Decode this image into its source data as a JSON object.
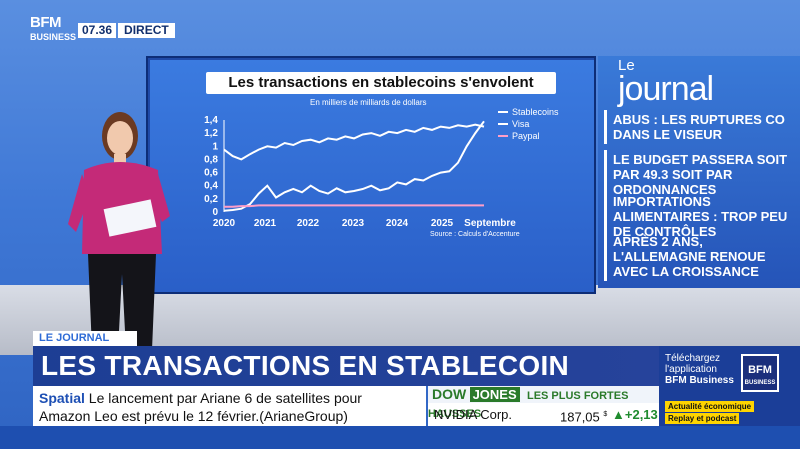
{
  "channel": {
    "logo_main": "BFM",
    "logo_sub": "BUSINESS",
    "time": "07.36",
    "live": "DIRECT"
  },
  "chart_data": {
    "type": "line",
    "title": "Les transactions en stablecoins s'envolent",
    "subtitle": "En milliers de milliards de dollars",
    "source": "Source : Calculs d'Accenture",
    "x_labels": [
      "2020",
      "2021",
      "2022",
      "2023",
      "2024",
      "2025",
      "Septembre"
    ],
    "y_labels": [
      "0",
      "0,2",
      "0,4",
      "0,6",
      "0,8",
      "1",
      "1,2",
      "1,4"
    ],
    "ylim": [
      0,
      1.4
    ],
    "legend": "top-right",
    "series": [
      {
        "name": "Stablecoins",
        "color": "#ffffff",
        "values": [
          0.02,
          0.03,
          0.05,
          0.12,
          0.28,
          0.4,
          0.22,
          0.3,
          0.35,
          0.3,
          0.4,
          0.32,
          0.28,
          0.36,
          0.3,
          0.32,
          0.35,
          0.4,
          0.33,
          0.36,
          0.45,
          0.42,
          0.5,
          0.48,
          0.55,
          0.6,
          0.62,
          0.75,
          1.0,
          1.2,
          1.38
        ]
      },
      {
        "name": "Visa",
        "color": "#ffffff",
        "values": [
          0.95,
          0.85,
          0.8,
          0.88,
          0.95,
          1.0,
          0.98,
          1.05,
          1.02,
          1.08,
          1.1,
          1.06,
          1.12,
          1.1,
          1.15,
          1.12,
          1.18,
          1.2,
          1.16,
          1.22,
          1.2,
          1.25,
          1.22,
          1.28,
          1.25,
          1.3,
          1.28,
          1.32,
          1.3,
          1.33,
          1.3
        ]
      },
      {
        "name": "Paypal",
        "color": "#ff9ec8",
        "values": [
          0.08,
          0.08,
          0.09,
          0.09,
          0.1,
          0.1,
          0.1,
          0.1,
          0.1,
          0.1,
          0.1,
          0.1,
          0.1,
          0.1,
          0.1,
          0.1,
          0.1,
          0.1,
          0.1,
          0.1,
          0.1,
          0.1,
          0.1,
          0.1,
          0.1,
          0.1,
          0.1,
          0.1,
          0.1,
          0.1,
          0.1
        ]
      }
    ]
  },
  "journal": {
    "prefix": "Le",
    "title": "journal",
    "items": [
      "ABUS : LES RUPTURES CO DANS LE VISEUR",
      "LE BUDGET PASSERA SOIT PAR 49.3 SOIT PAR ORDONNANCES",
      "IMPORTATIONS ALIMENTAIRES : TROP PEU DE  CONTRÔLES",
      "APRÈS 2 ANS, L'ALLEMAGNE RENOUE AVEC LA CROISSANCE"
    ]
  },
  "lower_third": {
    "tag": "LE JOURNAL",
    "headline": "LES TRANSACTIONS EN STABLECOIN EXPLOSENT"
  },
  "ticker": {
    "keyword": "Spatial",
    "text_line1": "Le lancement par Ariane 6 de satellites pour",
    "text_line2": "Amazon Leo est prévu le 12 février.(ArianeGroup)"
  },
  "market": {
    "dow": "DOW",
    "jones": "JONES",
    "label": "LES PLUS FORTES HAUSSES",
    "name": "NVIDIA Corp.",
    "value": "187,05",
    "currency": "$",
    "change": "+2,13"
  },
  "promo": {
    "line1": "Téléchargez",
    "line2": "l'application",
    "line3": "BFM Business",
    "logo_main": "BFM",
    "logo_sub": "BUSINESS",
    "badge1": "Actualité économique",
    "badge2": "Replay et podcast"
  }
}
